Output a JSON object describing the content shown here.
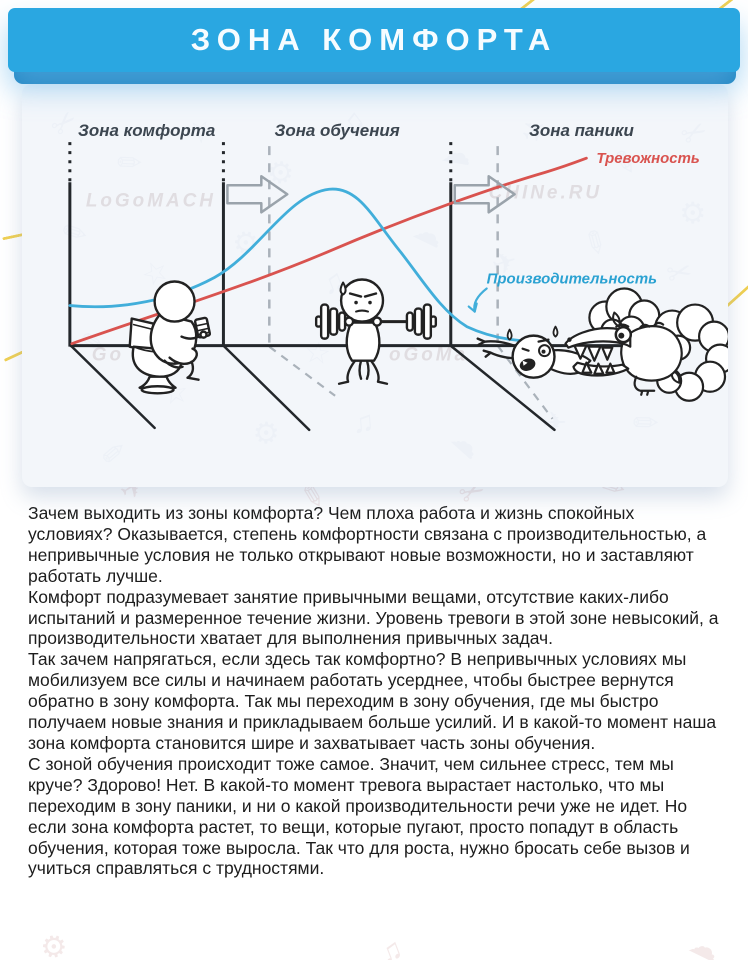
{
  "header": {
    "title": "ЗОНА КОМФОРТА"
  },
  "diagram": {
    "zone_labels": [
      "Зона комфорта",
      "Зона обучения",
      "Зона паники"
    ],
    "anxiety_label": "Тревожность",
    "productivity_label": "Производительность",
    "anxiety_color": "#d9534f",
    "productivity_color": "#41aeda",
    "watermark_fragments": [
      "LoGoMACH",
      "CHINe.RU",
      "oGoMa",
      "Go"
    ],
    "illustrations": [
      "person-sitting-on-toilet-with-phone",
      "person-lifting-barbell-with-sweat-drop",
      "crocodile-from-bushes-biting-screaming-person"
    ]
  },
  "chart_data": {
    "type": "line",
    "title": "",
    "xlabel": "",
    "ylabel": "",
    "grid": false,
    "legend_position": "labels-on-curves",
    "zones_x_ranges": [
      [
        0,
        30
      ],
      [
        30,
        62
      ],
      [
        62,
        100
      ]
    ],
    "zone_names": [
      "Зона комфорта",
      "Зона обучения",
      "Зона паники"
    ],
    "series": [
      {
        "name": "Тревожность",
        "color": "#d9534f",
        "x": [
          0,
          10,
          20,
          30,
          40,
          50,
          60,
          70,
          80
        ],
        "values": [
          3,
          12,
          20,
          29,
          39,
          50,
          60,
          70,
          78
        ]
      },
      {
        "name": "Производительность",
        "color": "#41aeda",
        "x": [
          0,
          10,
          20,
          27,
          35,
          43,
          50,
          58,
          66,
          74
        ],
        "values": [
          18,
          17,
          24,
          42,
          68,
          70,
          45,
          15,
          4,
          1
        ]
      }
    ]
  },
  "article": {
    "paragraphs": [
      "Зачем выходить из зоны комфорта? Чем плоха работа и жизнь спокойных условиях? Оказывается, степень комфортности связана с производительностью, а непривычные условия не только открывают новые возможности, но и заставляют работать лучше.",
      "Комфорт подразумевает занятие привычными вещами, отсутствие каких-либо испытаний и размеренное течение жизни. Уровень тревоги в этой зоне невысокий, а производительности хватает для выполнения привычных задач.",
      "Так зачем напрягаться, если здесь так комфортно? В непривычных условиях мы мобилизуем все силы и начинаем работать усерднее, чтобы быстрее вернутся обратно в зону комфорта. Так мы переходим в зону обучения, где мы быстро получаем новые знания и прикладываем больше усилий. И в какой-то момент наша зона комфорта становится шире и захватывает часть зоны обучения.",
      "С зоной обучения происходит тоже самое. Значит, чем сильнее стресс, тем мы круче? Здорово! Нет. В какой-то момент тревога вырастает настолько, что мы переходим в зону паники, и ни о какой производительности речи уже не идет. Но если зона комфорта растет, то вещи, которые пугают, просто попадут в область обучения, которая тоже выросла. Так что для роста, нужно бросать себе вызов и учиться справляться с трудностями."
    ]
  }
}
